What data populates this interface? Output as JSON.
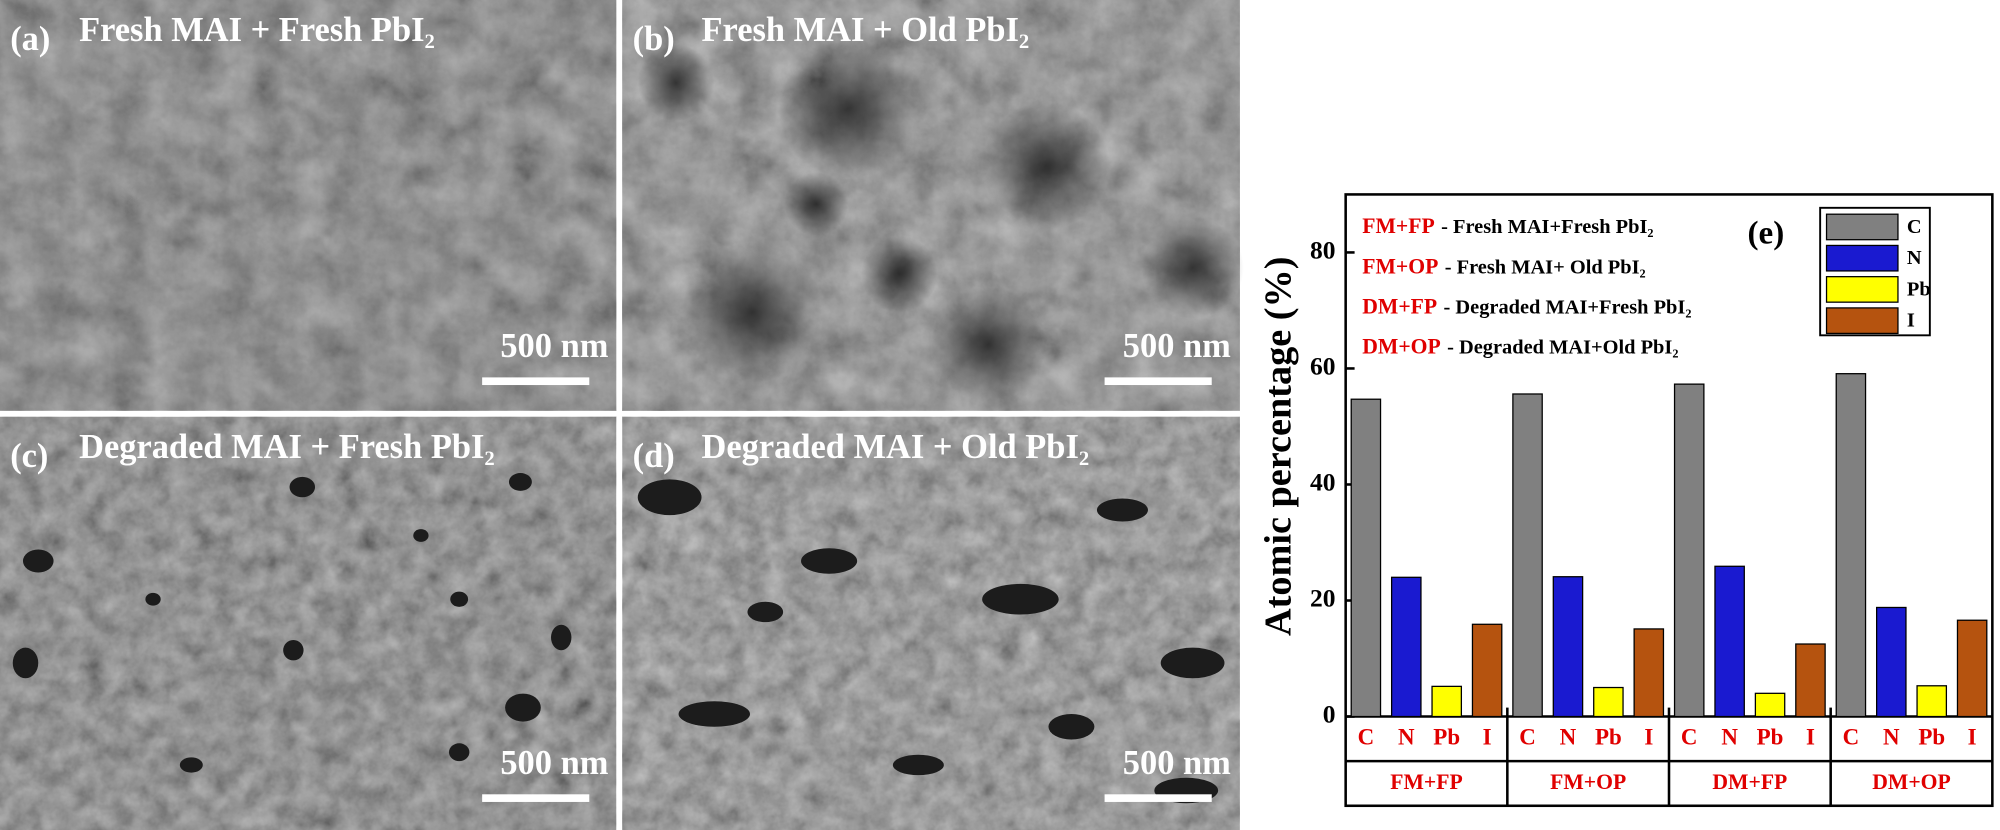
{
  "panels": [
    {
      "label": "(a)",
      "title": "Fresh MAI + Fresh PbI₂",
      "scale_bar": "500 nm"
    },
    {
      "label": "(b)",
      "title": "Fresh MAI + Old PbI₂",
      "scale_bar": "500 nm"
    },
    {
      "label": "(c)",
      "title": "Degraded MAI + Fresh PbI₂",
      "scale_bar": "500 nm"
    },
    {
      "label": "(d)",
      "title": "Degraded MAI + Old PbI₂",
      "scale_bar": "500 nm"
    }
  ],
  "chart_data": {
    "type": "bar",
    "label": "(e)",
    "y_label": "Atomic percentage (%)",
    "categories": [
      "FM+FP",
      "FM+OP",
      "DM+FP",
      "DM+OP"
    ],
    "series": [
      {
        "name": "C",
        "color": "#808080",
        "values": [
          54.7,
          55.6,
          57.3,
          59.1
        ]
      },
      {
        "name": "N",
        "color": "#1a1ad0",
        "values": [
          24.0,
          24.1,
          25.9,
          18.8
        ]
      },
      {
        "name": "Pb",
        "color": "#ffff00",
        "values": [
          5.2,
          5.0,
          4.0,
          5.3
        ]
      },
      {
        "name": "I",
        "color": "#b5530f",
        "values": [
          15.9,
          15.1,
          12.5,
          16.6
        ]
      }
    ],
    "abbreviations": [
      {
        "abbr": "FM+FP",
        "text": "- Fresh MAI+Fresh PbI₂"
      },
      {
        "abbr": "FM+OP",
        "text": "- Fresh MAI+ Old PbI₂"
      },
      {
        "abbr": "DM+FP",
        "text": "- Degraded MAI+Fresh PbI₂"
      },
      {
        "abbr": "DM+OP",
        "text": "- Degraded MAI+Old PbI₂"
      }
    ],
    "ylim": [
      0,
      90
    ],
    "yticks": [
      0,
      20,
      40,
      60,
      80
    ]
  }
}
